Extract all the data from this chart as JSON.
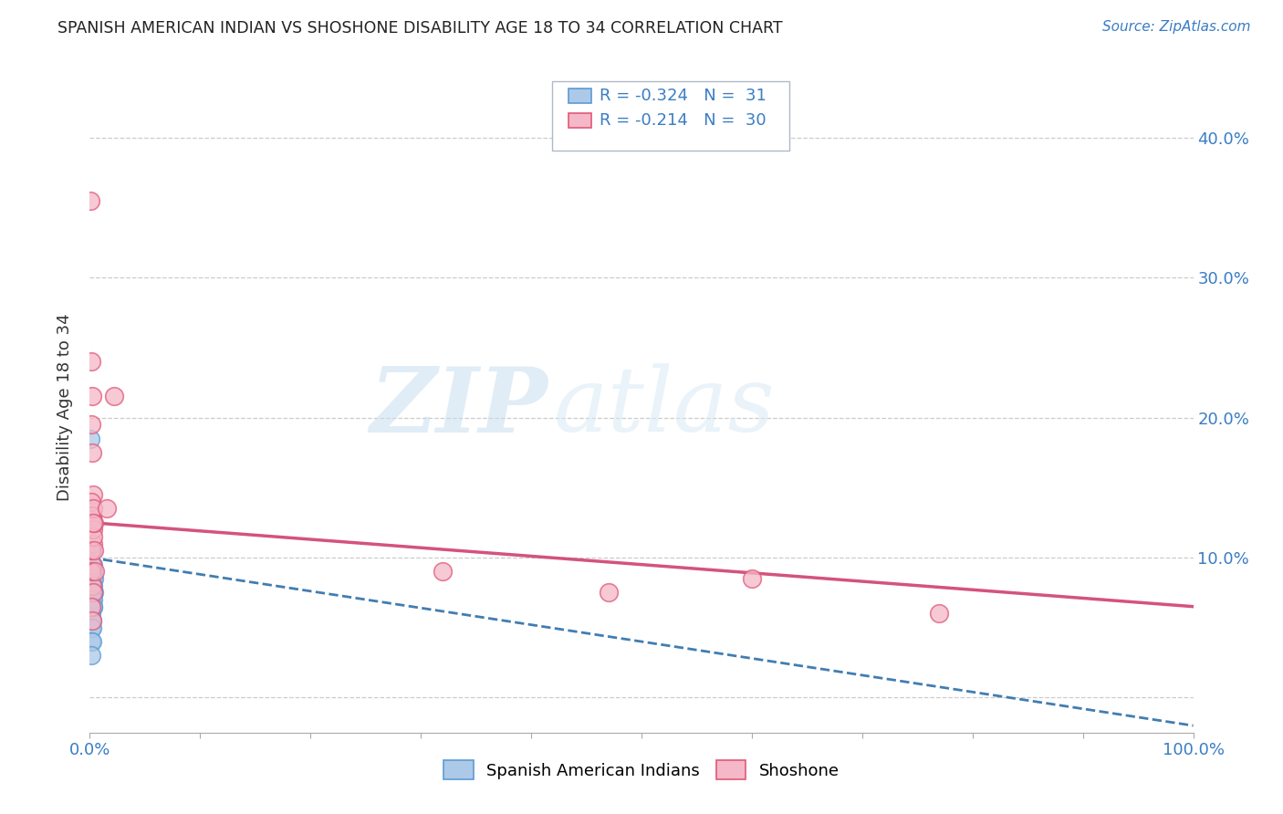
{
  "title": "SPANISH AMERICAN INDIAN VS SHOSHONE DISABILITY AGE 18 TO 34 CORRELATION CHART",
  "source": "Source: ZipAtlas.com",
  "ylabel": "Disability Age 18 to 34",
  "xlim": [
    0,
    1.0
  ],
  "ylim": [
    -0.025,
    0.44
  ],
  "xticks": [
    0.0,
    0.1,
    0.2,
    0.3,
    0.4,
    0.5,
    0.6,
    0.7,
    0.8,
    0.9,
    1.0
  ],
  "xticklabels": [
    "0.0%",
    "",
    "",
    "",
    "",
    "",
    "",
    "",
    "",
    "",
    "100.0%"
  ],
  "yticks": [
    0.0,
    0.1,
    0.2,
    0.3,
    0.4
  ],
  "yticklabels": [
    "",
    "10.0%",
    "20.0%",
    "30.0%",
    "40.0%"
  ],
  "series1_color": "#adc9e8",
  "series1_edge": "#5b9bd5",
  "series2_color": "#f4b8c8",
  "series2_edge": "#e05878",
  "trend1_color": "#2d6fa8",
  "trend2_color": "#d04070",
  "watermark_zip": "ZIP",
  "watermark_atlas": "atlas",
  "blue_x": [
    0.0005,
    0.001,
    0.001,
    0.002,
    0.001,
    0.002,
    0.003,
    0.002,
    0.001,
    0.003,
    0.002,
    0.003,
    0.002,
    0.001,
    0.004,
    0.003,
    0.002,
    0.001,
    0.003,
    0.002,
    0.001,
    0.004,
    0.003,
    0.002,
    0.001,
    0.003,
    0.002,
    0.001,
    0.003,
    0.002,
    0.001
  ],
  "blue_y": [
    0.185,
    0.09,
    0.105,
    0.075,
    0.08,
    0.095,
    0.085,
    0.075,
    0.07,
    0.09,
    0.105,
    0.095,
    0.08,
    0.07,
    0.085,
    0.075,
    0.065,
    0.06,
    0.08,
    0.07,
    0.055,
    0.075,
    0.065,
    0.055,
    0.05,
    0.07,
    0.05,
    0.04,
    0.065,
    0.04,
    0.03
  ],
  "pink_x": [
    0.0005,
    0.001,
    0.001,
    0.002,
    0.002,
    0.003,
    0.002,
    0.001,
    0.003,
    0.002,
    0.003,
    0.002,
    0.001,
    0.003,
    0.004,
    0.003,
    0.002,
    0.001,
    0.004,
    0.003,
    0.022,
    0.015,
    0.005,
    0.003,
    0.001,
    0.002,
    0.32,
    0.47,
    0.6,
    0.77
  ],
  "pink_y": [
    0.355,
    0.24,
    0.195,
    0.215,
    0.175,
    0.145,
    0.13,
    0.14,
    0.11,
    0.13,
    0.12,
    0.095,
    0.105,
    0.115,
    0.125,
    0.135,
    0.08,
    0.09,
    0.105,
    0.125,
    0.215,
    0.135,
    0.09,
    0.075,
    0.065,
    0.055,
    0.09,
    0.075,
    0.085,
    0.06
  ],
  "trend1_x0": 0.0,
  "trend1_x1": 1.0,
  "trend1_y0": 0.1,
  "trend1_y1": -0.02,
  "trend2_x0": 0.0,
  "trend2_x1": 1.0,
  "trend2_y0": 0.125,
  "trend2_y1": 0.065
}
